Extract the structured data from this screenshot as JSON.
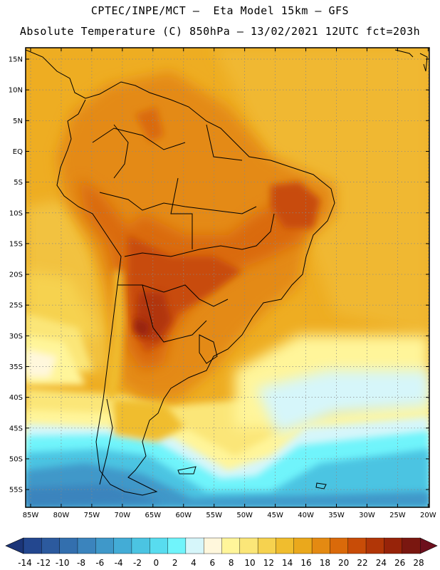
{
  "header": {
    "line1": "CPTEC/INPE/MCT —  Eta Model 15km — GFS",
    "line2": "Absolute Temperature (C) 850hPa — 13/02/2021 12UTC fct=203h"
  },
  "map": {
    "lat_labels": [
      "15N",
      "10N",
      "5N",
      "EQ",
      "5S",
      "10S",
      "15S",
      "20S",
      "25S",
      "30S",
      "35S",
      "40S",
      "45S",
      "50S",
      "55S"
    ],
    "lon_labels": [
      "85W",
      "80W",
      "75W",
      "70W",
      "65W",
      "60W",
      "55W",
      "50W",
      "45W",
      "40W",
      "35W",
      "30W",
      "25W",
      "20W"
    ]
  },
  "colorbar": {
    "ticks": [
      "-14",
      "-12",
      "-10",
      "-8",
      "-6",
      "-4",
      "-2",
      "0",
      "2",
      "4",
      "6",
      "8",
      "10",
      "12",
      "14",
      "16",
      "18",
      "20",
      "22",
      "24",
      "26",
      "28"
    ],
    "colors": [
      "#23478f",
      "#2c5a9e",
      "#336fae",
      "#3b84bd",
      "#3f98c9",
      "#43acd6",
      "#4bc4e2",
      "#58dcef",
      "#70f4fb",
      "#d6f6fa",
      "#fff7dc",
      "#fff59a",
      "#fbe678",
      "#f6d24f",
      "#f0bd2e",
      "#eaa81c",
      "#e48a12",
      "#da6a0a",
      "#c84c07",
      "#b13607",
      "#972309",
      "#7a1710"
    ],
    "under_color": "#1b3578",
    "over_color": "#6d0f1d"
  }
}
